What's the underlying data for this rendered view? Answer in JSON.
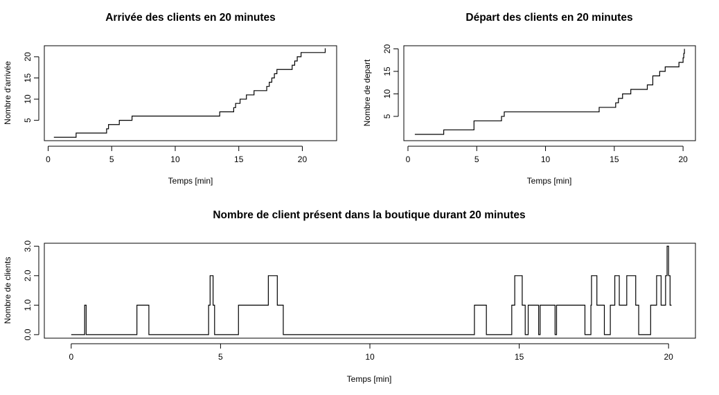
{
  "chart_data": [
    {
      "id": "arrivals",
      "type": "line",
      "step": true,
      "title": "Arrivée des clients en 20 minutes",
      "xlabel": "Temps [min]",
      "ylabel": "Nombre d'arrivée",
      "xlim": [
        -0.3,
        22.7
      ],
      "ylim": [
        0.2,
        22.6
      ],
      "xticks": [
        0,
        5,
        10,
        15,
        20
      ],
      "yticks": [
        5,
        10,
        15,
        20
      ],
      "grid": false,
      "x": [
        0.45,
        2.2,
        4.6,
        4.75,
        5.6,
        6.6,
        13.5,
        14.6,
        14.75,
        14.85,
        15.1,
        15.3,
        15.6,
        16.2,
        17.2,
        17.4,
        17.6,
        17.8,
        18.0,
        18.2,
        18.9,
        19.2,
        19.4,
        19.6,
        19.9,
        21.8
      ],
      "y": [
        1,
        2,
        3,
        4,
        5,
        6,
        7,
        8,
        9,
        9,
        10,
        10,
        11,
        12,
        13,
        14,
        15,
        16,
        17,
        17,
        17,
        18,
        19,
        20,
        21,
        22
      ]
    },
    {
      "id": "departures",
      "type": "line",
      "step": true,
      "title": "Départ des clients en 20 minutes",
      "xlabel": "Temps [min]",
      "ylabel": "Nombre de depart",
      "xlim": [
        -0.3,
        20.9
      ],
      "ylim": [
        -0.4,
        20.7
      ],
      "xticks": [
        0,
        5,
        10,
        15,
        20
      ],
      "yticks": [
        5,
        10,
        15,
        20
      ],
      "grid": false,
      "x": [
        0.5,
        2.6,
        4.8,
        6.8,
        7.0,
        13.9,
        15.1,
        15.3,
        15.6,
        16.2,
        17.4,
        17.8,
        18.3,
        18.7,
        19.7,
        20.0,
        20.05,
        20.1
      ],
      "y": [
        1,
        2,
        4,
        5,
        6,
        7,
        8,
        9,
        10,
        11,
        12,
        14,
        15,
        16,
        17,
        18,
        19,
        20
      ]
    },
    {
      "id": "present",
      "type": "line",
      "step": true,
      "title": "Nombre de client présent dans la boutique durant 20 minutes",
      "xlabel": "Temps [min]",
      "ylabel": "Nombre de clients",
      "xlim": [
        -0.9,
        20.9
      ],
      "ylim": [
        -0.12,
        3.1
      ],
      "xticks": [
        0,
        5,
        10,
        15,
        20
      ],
      "yticks": [
        0.0,
        1.0,
        2.0,
        3.0
      ],
      "ytick_labels": [
        "0.0",
        "1.0",
        "2.0",
        "3.0"
      ],
      "grid": false,
      "x": [
        0,
        0.45,
        0.5,
        2.2,
        2.6,
        4.6,
        4.65,
        4.75,
        4.8,
        5.6,
        6.6,
        6.9,
        7.1,
        13.5,
        13.9,
        14.75,
        14.85,
        15.1,
        15.2,
        15.3,
        15.6,
        15.65,
        15.7,
        16.2,
        16.25,
        17.2,
        17.4,
        17.42,
        17.6,
        17.85,
        18.05,
        18.2,
        18.35,
        18.6,
        18.9,
        19.0,
        19.4,
        19.6,
        19.75,
        19.9,
        19.95,
        20.0,
        20.05,
        20.1
      ],
      "y": [
        0,
        1,
        0,
        1,
        0,
        1,
        2,
        1,
        0,
        1,
        2,
        1,
        0,
        1,
        0,
        1,
        2,
        1,
        0,
        1,
        1,
        0,
        1,
        0,
        1,
        0,
        1,
        2,
        1,
        0,
        1,
        2,
        1,
        2,
        1,
        0,
        1,
        2,
        1,
        2,
        3,
        2,
        1,
        1
      ]
    }
  ]
}
